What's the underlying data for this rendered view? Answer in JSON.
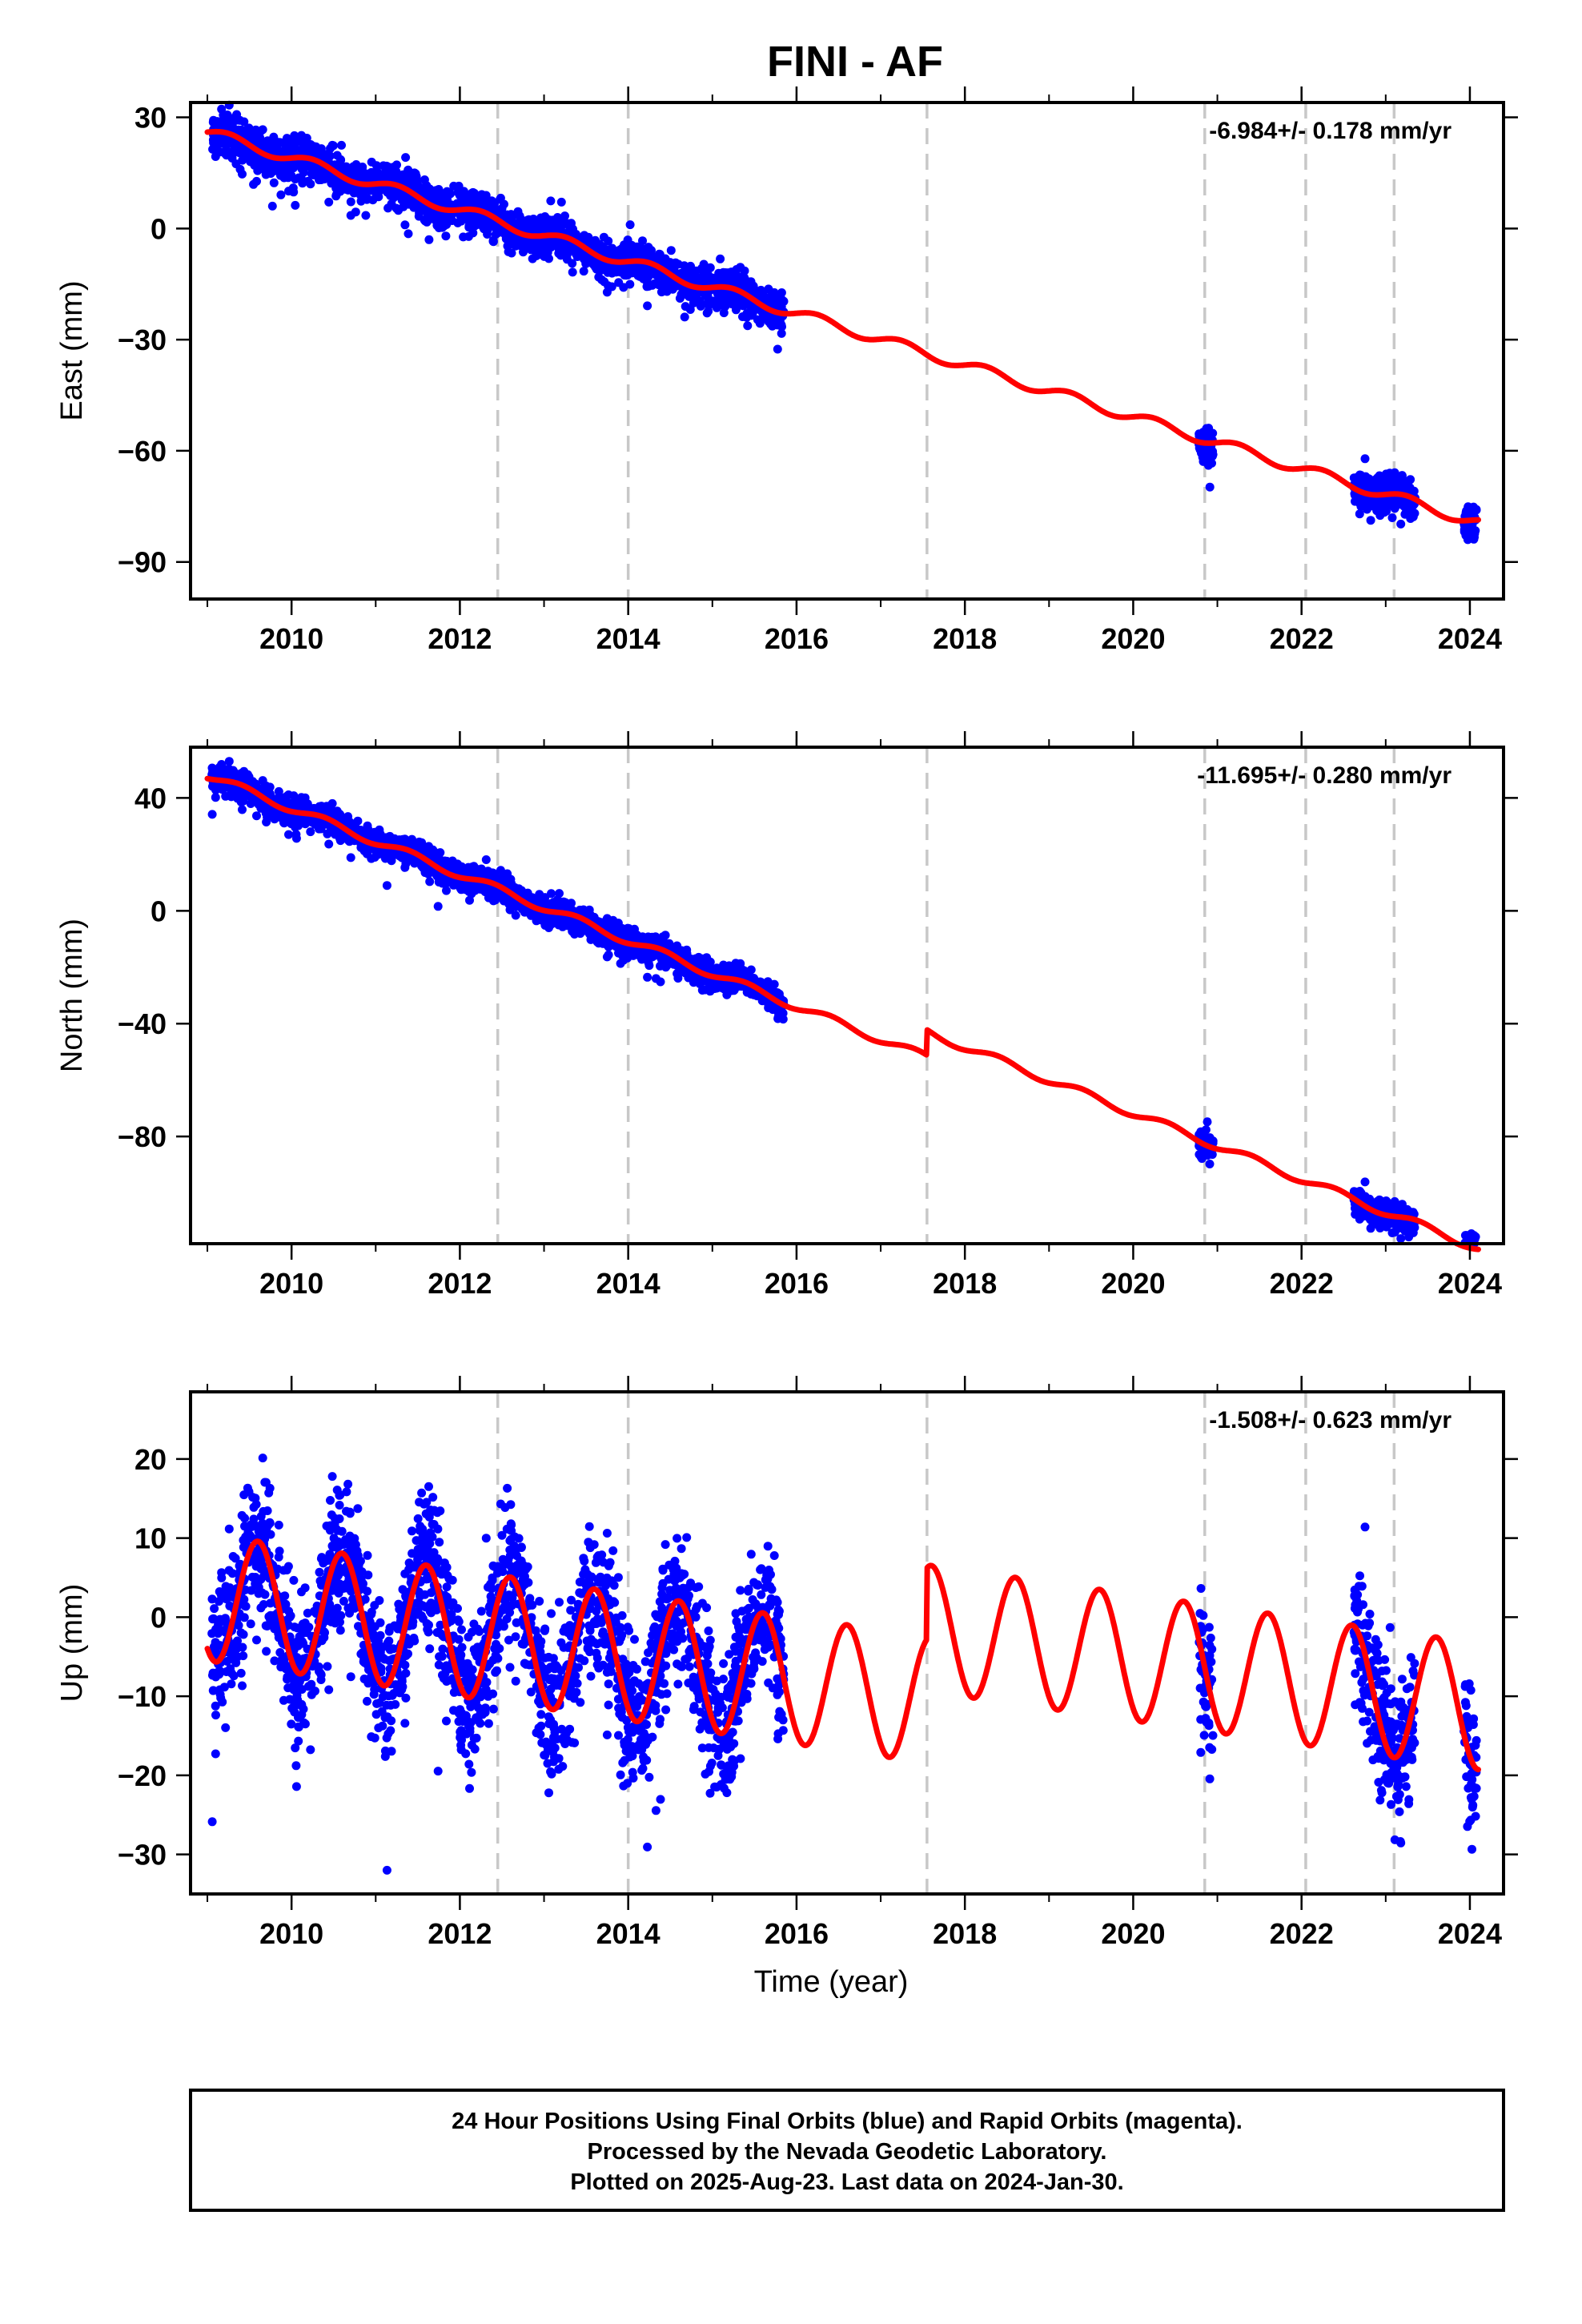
{
  "title": "FINI - AF",
  "colors": {
    "observations": "#0000ff",
    "model": "#ff0000",
    "offset_lines": "#c8c8c8",
    "frame": "#000000"
  },
  "chart_data": [
    {
      "type": "scatter",
      "panel": "east",
      "ylabel": "East (mm)",
      "xlabel": "",
      "rate_label": "-6.984+/- 0.178 mm/yr",
      "xlim": [
        2008.8,
        2024.4
      ],
      "ylim": [
        -100,
        34
      ],
      "x_ticks": [
        2010,
        2012,
        2014,
        2016,
        2018,
        2020,
        2022,
        2024
      ],
      "y_ticks": [
        30,
        0,
        -30,
        -60,
        -90
      ],
      "y_tick_labels": [
        "30",
        "0",
        "−30",
        "−60",
        "−90"
      ],
      "offset_epochs": [
        2012.45,
        2014.0,
        2017.55,
        2020.85,
        2022.05,
        2023.1
      ],
      "rate_mm_per_yr": -6.984,
      "seasonal": {
        "amplitude_mm": 1.4,
        "phase_yr": 0.0,
        "annual": true
      },
      "model_anchor": {
        "epoch": 2009.0,
        "value_mm": 26.0
      },
      "observation_segments": [
        [
          2009.05,
          2015.85
        ],
        [
          2020.78,
          2020.95
        ],
        [
          2022.62,
          2023.35
        ],
        [
          2023.93,
          2024.08
        ]
      ],
      "observation_scatter_mm": 2.6,
      "model_jumps_mm": [
        0,
        0,
        0,
        0,
        0,
        0
      ],
      "grid": false
    },
    {
      "type": "scatter",
      "panel": "north",
      "ylabel": "North (mm)",
      "xlabel": "",
      "rate_label": "-11.695+/- 0.280 mm/yr",
      "xlim": [
        2008.8,
        2024.4
      ],
      "ylim": [
        -118,
        58
      ],
      "x_ticks": [
        2010,
        2012,
        2014,
        2016,
        2018,
        2020,
        2022,
        2024
      ],
      "y_ticks": [
        40,
        0,
        -40,
        -80
      ],
      "y_tick_labels": [
        "40",
        "0",
        "−40",
        "−80"
      ],
      "offset_epochs": [
        2012.45,
        2014.0,
        2017.55,
        2020.85,
        2022.05,
        2023.1
      ],
      "rate_mm_per_yr": -11.695,
      "seasonal": {
        "amplitude_mm": 1.4,
        "phase_yr": 0.15,
        "annual": true
      },
      "model_anchor": {
        "epoch": 2009.0,
        "value_mm": 48.0
      },
      "observation_segments": [
        [
          2009.05,
          2015.85
        ],
        [
          2020.78,
          2020.95
        ],
        [
          2022.62,
          2023.35
        ],
        [
          2023.93,
          2024.08
        ]
      ],
      "observation_scatter_mm": 2.4,
      "model_jumps_mm": [
        0,
        0,
        9,
        0,
        0,
        0
      ],
      "grid": false
    },
    {
      "type": "scatter",
      "panel": "up",
      "ylabel": "Up (mm)",
      "xlabel": "Time (year)",
      "rate_label": "-1.508+/- 0.623 mm/yr",
      "xlim": [
        2008.8,
        2024.4
      ],
      "ylim": [
        -35,
        28.5
      ],
      "x_ticks": [
        2010,
        2012,
        2014,
        2016,
        2018,
        2020,
        2022,
        2024
      ],
      "y_ticks": [
        20,
        10,
        0,
        -10,
        -20,
        -30
      ],
      "y_tick_labels": [
        "20",
        "10",
        "0",
        "−10",
        "−20",
        "−30"
      ],
      "offset_epochs": [
        2012.45,
        2014.0,
        2017.55,
        2020.85,
        2022.05,
        2023.1
      ],
      "rate_mm_per_yr": -1.508,
      "seasonal": {
        "amplitude_mm": 8.0,
        "phase_yr": 0.35,
        "annual": true
      },
      "model_anchor": {
        "epoch": 2009.0,
        "value_mm": 2.5
      },
      "observation_segments": [
        [
          2009.05,
          2015.85
        ],
        [
          2020.78,
          2020.95
        ],
        [
          2022.62,
          2023.35
        ],
        [
          2023.93,
          2024.08
        ]
      ],
      "observation_scatter_mm": 4.5,
      "model_jumps_mm": [
        0,
        0,
        9,
        0,
        0,
        0
      ],
      "grid": false
    }
  ],
  "footer": {
    "line1": "24 Hour Positions Using Final Orbits (blue) and Rapid Orbits (magenta).",
    "line2": "Processed by the Nevada Geodetic Laboratory.",
    "line3": "Plotted on 2025-Aug-23. Last data on 2024-Jan-30."
  }
}
